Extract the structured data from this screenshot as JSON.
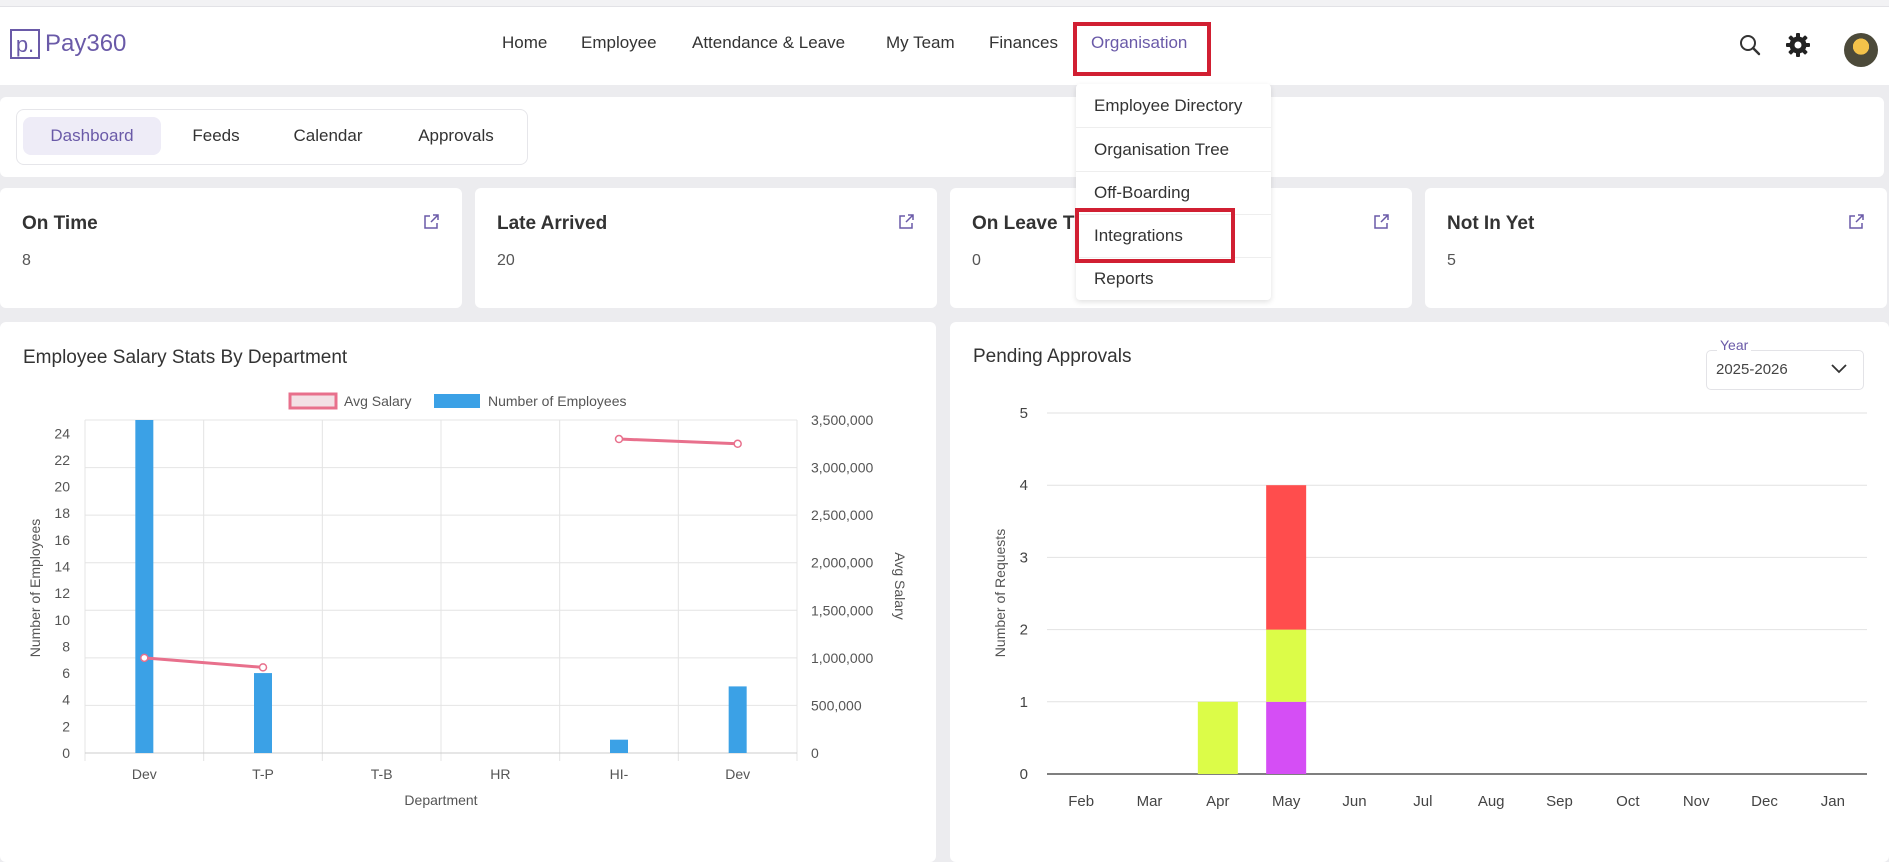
{
  "app": {
    "logo_letter": "p.",
    "name": "Pay360"
  },
  "nav": {
    "items": [
      "Home",
      "Employee",
      "Attendance & Leave",
      "My Team",
      "Finances",
      "Organisation"
    ],
    "active": "Organisation"
  },
  "header_icons": [
    "search-icon",
    "gear-icon",
    "avatar"
  ],
  "tabs": {
    "items": [
      "Dashboard",
      "Feeds",
      "Calendar",
      "Approvals"
    ],
    "active": "Dashboard"
  },
  "dropdown": {
    "items": [
      "Employee Directory",
      "Organisation Tree",
      "Off-Boarding",
      "Integrations",
      "Reports"
    ]
  },
  "cards": [
    {
      "title": "On Time",
      "value": "8"
    },
    {
      "title": "Late Arrived",
      "value": "20"
    },
    {
      "title": "On Leave T",
      "value": "0"
    },
    {
      "title": "Not In Yet",
      "value": "5"
    }
  ],
  "salary_panel": {
    "title": "Employee Salary Stats By Department"
  },
  "approvals_panel": {
    "title": "Pending Approvals",
    "year_label": "Year",
    "year_value": "2025-2026"
  },
  "colors": {
    "accent": "#6a5aa8",
    "highlight": "#d11f32",
    "bar_blue": "#3ba1e6",
    "line_pink": "#e8708c",
    "red": "#ff4d4d",
    "lime": "#dcfc48",
    "magenta": "#d54ef5"
  },
  "chart_data": [
    {
      "type": "bar",
      "categories": [
        "Dev",
        "T-P",
        "T-B",
        "HR",
        "HI-",
        "Dev"
      ],
      "xlabel": "Department",
      "ylabel": "Number of Employees",
      "y2label": "Avg Salary",
      "ylim": [
        0,
        25
      ],
      "y2lim": [
        0,
        3500000
      ],
      "y_ticks": [
        0,
        2,
        4,
        6,
        8,
        10,
        12,
        14,
        16,
        18,
        20,
        22,
        24
      ],
      "y2_ticks": [
        "0",
        "500,000",
        "1,000,000",
        "1,500,000",
        "2,000,000",
        "2,500,000",
        "3,000,000",
        "3,500,000"
      ],
      "legend": [
        "Avg Salary",
        "Number of Employees"
      ],
      "legend_position": "top",
      "series": [
        {
          "name": "Number of Employees",
          "type": "bar",
          "values": [
            25,
            6,
            0,
            0,
            1,
            5
          ]
        },
        {
          "name": "Avg Salary",
          "type": "line",
          "segments": [
            {
              "from": 0,
              "to": 1,
              "values": [
                1000000,
                900000
              ]
            },
            {
              "from": 4,
              "to": 5,
              "values": [
                3300000,
                3250000
              ]
            }
          ]
        }
      ],
      "grid": true
    },
    {
      "type": "bar",
      "stacked": true,
      "categories": [
        "Feb",
        "Mar",
        "Apr",
        "May",
        "Jun",
        "Jul",
        "Aug",
        "Sep",
        "Oct",
        "Nov",
        "Dec",
        "Jan"
      ],
      "ylabel": "Number of Requests",
      "ylim": [
        0,
        5
      ],
      "y_ticks": [
        0,
        1,
        2,
        3,
        4,
        5
      ],
      "series": [
        {
          "color": "#d54ef5",
          "values": [
            0,
            0,
            0,
            1,
            0,
            0,
            0,
            0,
            0,
            0,
            0,
            0
          ]
        },
        {
          "color": "#dcfc48",
          "values": [
            0,
            0,
            1,
            1,
            0,
            0,
            0,
            0,
            0,
            0,
            0,
            0
          ]
        },
        {
          "color": "#ff4d4d",
          "values": [
            0,
            0,
            0,
            2,
            0,
            0,
            0,
            0,
            0,
            0,
            0,
            0
          ]
        }
      ],
      "grid": true
    }
  ]
}
